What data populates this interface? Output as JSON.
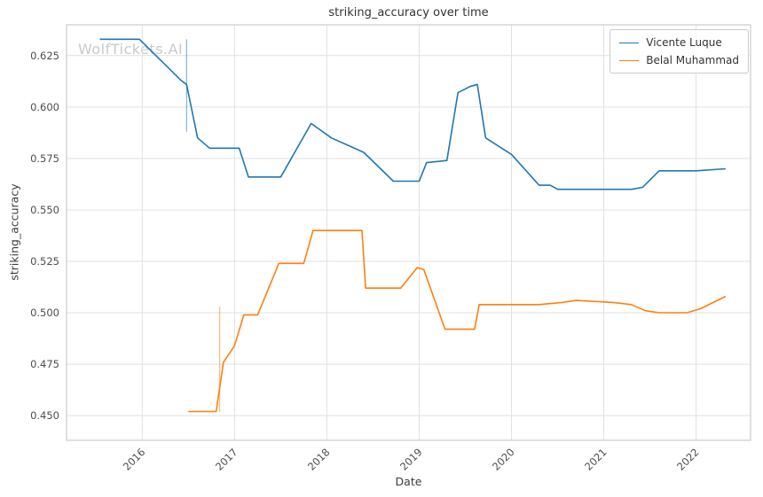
{
  "watermark": "WolfTickets.AI",
  "chart_data": {
    "type": "line",
    "title": "striking_accuracy over time",
    "xlabel": "Date",
    "ylabel": "striking_accuracy",
    "grid": true,
    "legend_position": "upper right",
    "xlim": [
      2015.18,
      2022.59
    ],
    "ylim": [
      0.438,
      0.64
    ],
    "xticks": [
      {
        "v": 2016,
        "label": "2016"
      },
      {
        "v": 2017,
        "label": "2017"
      },
      {
        "v": 2018,
        "label": "2018"
      },
      {
        "v": 2019,
        "label": "2019"
      },
      {
        "v": 2020,
        "label": "2020"
      },
      {
        "v": 2021,
        "label": "2021"
      },
      {
        "v": 2022,
        "label": "2022"
      }
    ],
    "yticks": [
      {
        "v": 0.45,
        "label": "0.450"
      },
      {
        "v": 0.475,
        "label": "0.475"
      },
      {
        "v": 0.5,
        "label": "0.500"
      },
      {
        "v": 0.525,
        "label": "0.525"
      },
      {
        "v": 0.55,
        "label": "0.550"
      },
      {
        "v": 0.575,
        "label": "0.575"
      },
      {
        "v": 0.6,
        "label": "0.600"
      },
      {
        "v": 0.625,
        "label": "0.625"
      }
    ],
    "series": [
      {
        "name": "Vicente Luque",
        "color": "#1f77b4",
        "points": [
          [
            2015.54,
            0.633
          ],
          [
            2015.97,
            0.633
          ],
          [
            2016.42,
            0.613
          ],
          [
            2016.48,
            0.611
          ],
          [
            2016.6,
            0.585
          ],
          [
            2016.73,
            0.58
          ],
          [
            2017.05,
            0.58
          ],
          [
            2017.15,
            0.566
          ],
          [
            2017.5,
            0.566
          ],
          [
            2017.83,
            0.592
          ],
          [
            2018.05,
            0.585
          ],
          [
            2018.4,
            0.578
          ],
          [
            2018.72,
            0.564
          ],
          [
            2019.0,
            0.564
          ],
          [
            2019.08,
            0.573
          ],
          [
            2019.3,
            0.574
          ],
          [
            2019.42,
            0.607
          ],
          [
            2019.55,
            0.61
          ],
          [
            2019.63,
            0.611
          ],
          [
            2019.72,
            0.585
          ],
          [
            2020.0,
            0.577
          ],
          [
            2020.3,
            0.562
          ],
          [
            2020.42,
            0.562
          ],
          [
            2020.5,
            0.56
          ],
          [
            2021.3,
            0.56
          ],
          [
            2021.42,
            0.561
          ],
          [
            2021.6,
            0.569
          ],
          [
            2022.0,
            0.569
          ],
          [
            2022.32,
            0.57
          ]
        ]
      },
      {
        "name": "Belal Muhammad",
        "color": "#ff7f0e",
        "points": [
          [
            2016.5,
            0.452
          ],
          [
            2016.8,
            0.452
          ],
          [
            2016.88,
            0.476
          ],
          [
            2017.0,
            0.484
          ],
          [
            2017.1,
            0.499
          ],
          [
            2017.25,
            0.499
          ],
          [
            2017.48,
            0.524
          ],
          [
            2017.75,
            0.524
          ],
          [
            2017.85,
            0.54
          ],
          [
            2018.38,
            0.54
          ],
          [
            2018.42,
            0.512
          ],
          [
            2018.8,
            0.512
          ],
          [
            2018.98,
            0.522
          ],
          [
            2019.05,
            0.521
          ],
          [
            2019.28,
            0.492
          ],
          [
            2019.6,
            0.492
          ],
          [
            2019.65,
            0.504
          ],
          [
            2020.3,
            0.504
          ],
          [
            2020.55,
            0.505
          ],
          [
            2020.7,
            0.506
          ],
          [
            2021.1,
            0.505
          ],
          [
            2021.3,
            0.504
          ],
          [
            2021.45,
            0.501
          ],
          [
            2021.6,
            0.5
          ],
          [
            2021.9,
            0.5
          ],
          [
            2022.05,
            0.502
          ],
          [
            2022.32,
            0.508
          ]
        ]
      }
    ],
    "vlines": [
      {
        "x": 2016.48,
        "y1": 0.588,
        "y2": 0.633,
        "series": 0
      },
      {
        "x": 2016.84,
        "y1": 0.452,
        "y2": 0.503,
        "series": 1
      }
    ]
  }
}
